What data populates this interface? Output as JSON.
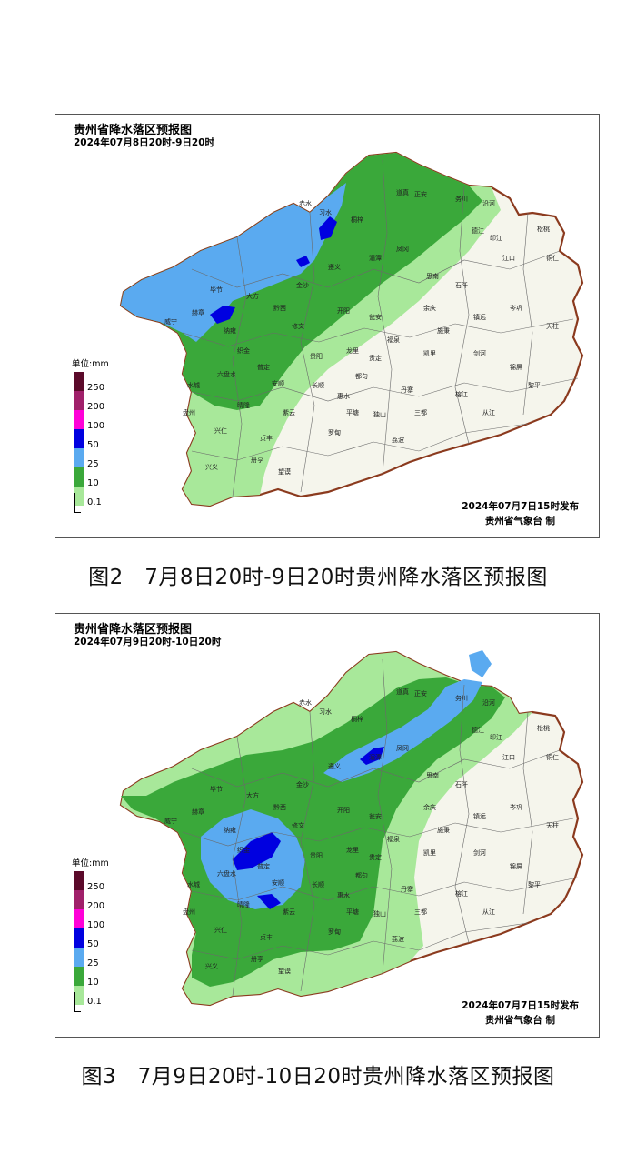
{
  "maps": [
    {
      "title": "贵州省降水落区预报图",
      "subtitle": "2024年07月8日20时-9日20时",
      "issued": "2024年07月7日15时发布",
      "issuer": "贵州省气象台 制",
      "caption": "图2　7月8日20时-9日20时贵州降水落区预报图"
    },
    {
      "title": "贵州省降水落区预报图",
      "subtitle": "2024年07月9日20时-10日20时",
      "issued": "2024年07月7日15时发布",
      "issuer": "贵州省气象台 制",
      "caption": "图3　7月9日20时-10日20时贵州降水落区预报图"
    }
  ],
  "legend": {
    "unit": "单位:mm",
    "levels": [
      {
        "label": "250",
        "color": "#5b0a2a"
      },
      {
        "label": "200",
        "color": "#a0206a"
      },
      {
        "label": "100",
        "color": "#ff00d8"
      },
      {
        "label": "50",
        "color": "#0000e0"
      },
      {
        "label": "25",
        "color": "#5aaaf0"
      },
      {
        "label": "10",
        "color": "#3aa83a"
      },
      {
        "label": "0.1",
        "color": "#a8e89a"
      }
    ]
  },
  "colors": {
    "no_rain": "#f5f5ec",
    "border": "#8b3a1e"
  },
  "cities": {
    "map1": [
      "习水",
      "赤水",
      "桐梓",
      "道真",
      "正安",
      "务川",
      "沿河",
      "德江",
      "印江",
      "江口",
      "松桃",
      "铜仁",
      "毕节",
      "大方",
      "黔西",
      "金沙",
      "遵义",
      "湄潭",
      "凤冈",
      "思南",
      "石阡",
      "余庆",
      "威宁",
      "赫章",
      "纳雍",
      "织金",
      "修文",
      "开阳",
      "瓮安",
      "施秉",
      "镇远",
      "岑巩",
      "天柱",
      "六盘水",
      "普定",
      "安顺",
      "贵阳",
      "龙里",
      "贵定",
      "福泉",
      "凯里",
      "剑河",
      "锦屏",
      "水城",
      "盘州",
      "晴隆",
      "紫云",
      "长顺",
      "惠水",
      "都匀",
      "丹寨",
      "榕江",
      "黎平",
      "兴仁",
      "贞丰",
      "罗甸",
      "平塘",
      "独山",
      "三都",
      "从江",
      "兴义",
      "册亨",
      "望谟",
      "荔波"
    ],
    "map2": [
      "习水",
      "赤水",
      "桐梓",
      "道真",
      "正安",
      "务川",
      "沿河",
      "德江",
      "印江",
      "江口",
      "松桃",
      "铜仁",
      "毕节",
      "大方",
      "黔西",
      "金沙",
      "遵义",
      "湄潭",
      "凤冈",
      "思南",
      "石阡",
      "余庆",
      "威宁",
      "赫章",
      "纳雍",
      "织金",
      "修文",
      "开阳",
      "瓮安",
      "施秉",
      "镇远",
      "岑巩",
      "天柱",
      "六盘水",
      "普定",
      "安顺",
      "贵阳",
      "龙里",
      "贵定",
      "福泉",
      "凯里",
      "剑河",
      "锦屏",
      "水城",
      "盘州",
      "晴隆",
      "紫云",
      "长顺",
      "惠水",
      "都匀",
      "丹寨",
      "榕江",
      "黎平",
      "兴仁",
      "贞丰",
      "罗甸",
      "平塘",
      "独山",
      "三都",
      "从江",
      "兴义",
      "册亨",
      "望谟",
      "荔波"
    ]
  }
}
